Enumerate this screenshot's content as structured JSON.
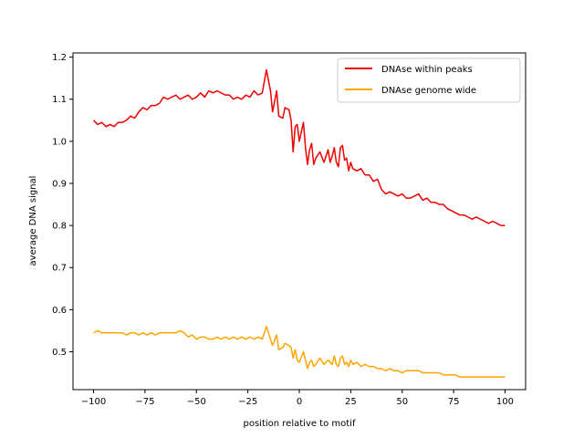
{
  "chart_data": {
    "type": "line",
    "title": "",
    "xlabel": "position relative to motif",
    "ylabel": "average DNA signal",
    "xlim": [
      -110,
      110
    ],
    "ylim": [
      0.41,
      1.21
    ],
    "xticks": [
      -100,
      -75,
      -50,
      -25,
      0,
      25,
      50,
      75,
      100
    ],
    "xtick_labels": [
      "−100",
      "−75",
      "−50",
      "−25",
      "0",
      "25",
      "50",
      "75",
      "100"
    ],
    "yticks": [
      0.5,
      0.6,
      0.7,
      0.8,
      0.9,
      1.0,
      1.1,
      1.2
    ],
    "ytick_labels": [
      "0.5",
      "0.6",
      "0.7",
      "0.8",
      "0.9",
      "1.0",
      "1.1",
      "1.2"
    ],
    "grid": false,
    "legend_position": "top-right",
    "series": [
      {
        "name": "DNAse within peaks",
        "color": "#ee0000",
        "points": [
          [
            -100,
            1.05
          ],
          [
            -98,
            1.04
          ],
          [
            -96,
            1.045
          ],
          [
            -94,
            1.035
          ],
          [
            -92,
            1.04
          ],
          [
            -90,
            1.035
          ],
          [
            -88,
            1.045
          ],
          [
            -86,
            1.045
          ],
          [
            -84,
            1.05
          ],
          [
            -82,
            1.06
          ],
          [
            -80,
            1.055
          ],
          [
            -78,
            1.07
          ],
          [
            -76,
            1.08
          ],
          [
            -74,
            1.075
          ],
          [
            -72,
            1.085
          ],
          [
            -70,
            1.085
          ],
          [
            -68,
            1.09
          ],
          [
            -66,
            1.105
          ],
          [
            -64,
            1.1
          ],
          [
            -62,
            1.105
          ],
          [
            -60,
            1.11
          ],
          [
            -58,
            1.1
          ],
          [
            -56,
            1.105
          ],
          [
            -54,
            1.11
          ],
          [
            -52,
            1.1
          ],
          [
            -50,
            1.105
          ],
          [
            -48,
            1.115
          ],
          [
            -46,
            1.105
          ],
          [
            -44,
            1.12
          ],
          [
            -42,
            1.115
          ],
          [
            -40,
            1.12
          ],
          [
            -38,
            1.115
          ],
          [
            -36,
            1.11
          ],
          [
            -34,
            1.11
          ],
          [
            -32,
            1.1
          ],
          [
            -30,
            1.105
          ],
          [
            -28,
            1.1
          ],
          [
            -26,
            1.11
          ],
          [
            -24,
            1.105
          ],
          [
            -22,
            1.12
          ],
          [
            -20,
            1.11
          ],
          [
            -18,
            1.115
          ],
          [
            -16,
            1.17
          ],
          [
            -14,
            1.12
          ],
          [
            -13,
            1.07
          ],
          [
            -11,
            1.12
          ],
          [
            -10,
            1.06
          ],
          [
            -8,
            1.055
          ],
          [
            -7,
            1.08
          ],
          [
            -5,
            1.075
          ],
          [
            -4,
            1.05
          ],
          [
            -3,
            0.975
          ],
          [
            -2,
            1.035
          ],
          [
            -1,
            1.04
          ],
          [
            0,
            1.0
          ],
          [
            2,
            1.045
          ],
          [
            3,
            0.985
          ],
          [
            4,
            0.945
          ],
          [
            5,
            0.98
          ],
          [
            6,
            0.995
          ],
          [
            7,
            0.945
          ],
          [
            8,
            0.96
          ],
          [
            10,
            0.975
          ],
          [
            12,
            0.95
          ],
          [
            14,
            0.98
          ],
          [
            15,
            0.95
          ],
          [
            16,
            0.965
          ],
          [
            17,
            0.985
          ],
          [
            18,
            0.95
          ],
          [
            19,
            0.94
          ],
          [
            20,
            0.985
          ],
          [
            21,
            0.99
          ],
          [
            22,
            0.955
          ],
          [
            23,
            0.96
          ],
          [
            24,
            0.93
          ],
          [
            25,
            0.95
          ],
          [
            26,
            0.935
          ],
          [
            28,
            0.93
          ],
          [
            30,
            0.935
          ],
          [
            32,
            0.92
          ],
          [
            34,
            0.92
          ],
          [
            36,
            0.905
          ],
          [
            38,
            0.91
          ],
          [
            40,
            0.885
          ],
          [
            42,
            0.875
          ],
          [
            44,
            0.88
          ],
          [
            46,
            0.875
          ],
          [
            48,
            0.87
          ],
          [
            50,
            0.875
          ],
          [
            52,
            0.865
          ],
          [
            54,
            0.865
          ],
          [
            56,
            0.87
          ],
          [
            58,
            0.875
          ],
          [
            60,
            0.86
          ],
          [
            62,
            0.865
          ],
          [
            64,
            0.855
          ],
          [
            66,
            0.855
          ],
          [
            68,
            0.85
          ],
          [
            70,
            0.85
          ],
          [
            72,
            0.84
          ],
          [
            74,
            0.835
          ],
          [
            76,
            0.83
          ],
          [
            78,
            0.825
          ],
          [
            80,
            0.825
          ],
          [
            82,
            0.82
          ],
          [
            84,
            0.815
          ],
          [
            86,
            0.82
          ],
          [
            88,
            0.815
          ],
          [
            90,
            0.81
          ],
          [
            92,
            0.805
          ],
          [
            94,
            0.81
          ],
          [
            96,
            0.805
          ],
          [
            98,
            0.8
          ],
          [
            100,
            0.8
          ]
        ]
      },
      {
        "name": "DNAse genome wide",
        "color": "#ffa500",
        "points": [
          [
            -100,
            0.545
          ],
          [
            -98,
            0.55
          ],
          [
            -96,
            0.545
          ],
          [
            -94,
            0.545
          ],
          [
            -92,
            0.545
          ],
          [
            -90,
            0.545
          ],
          [
            -88,
            0.545
          ],
          [
            -86,
            0.545
          ],
          [
            -84,
            0.54
          ],
          [
            -82,
            0.545
          ],
          [
            -80,
            0.545
          ],
          [
            -78,
            0.54
          ],
          [
            -76,
            0.545
          ],
          [
            -74,
            0.54
          ],
          [
            -72,
            0.545
          ],
          [
            -70,
            0.54
          ],
          [
            -68,
            0.545
          ],
          [
            -66,
            0.545
          ],
          [
            -64,
            0.545
          ],
          [
            -62,
            0.545
          ],
          [
            -60,
            0.545
          ],
          [
            -58,
            0.55
          ],
          [
            -56,
            0.545
          ],
          [
            -54,
            0.535
          ],
          [
            -52,
            0.54
          ],
          [
            -50,
            0.53
          ],
          [
            -48,
            0.535
          ],
          [
            -46,
            0.535
          ],
          [
            -44,
            0.53
          ],
          [
            -42,
            0.53
          ],
          [
            -40,
            0.535
          ],
          [
            -38,
            0.53
          ],
          [
            -36,
            0.535
          ],
          [
            -34,
            0.53
          ],
          [
            -32,
            0.535
          ],
          [
            -30,
            0.53
          ],
          [
            -28,
            0.535
          ],
          [
            -26,
            0.53
          ],
          [
            -24,
            0.535
          ],
          [
            -22,
            0.53
          ],
          [
            -20,
            0.535
          ],
          [
            -18,
            0.53
          ],
          [
            -16,
            0.56
          ],
          [
            -14,
            0.53
          ],
          [
            -13,
            0.515
          ],
          [
            -11,
            0.54
          ],
          [
            -10,
            0.505
          ],
          [
            -8,
            0.51
          ],
          [
            -7,
            0.52
          ],
          [
            -5,
            0.515
          ],
          [
            -4,
            0.51
          ],
          [
            -3,
            0.485
          ],
          [
            -2,
            0.505
          ],
          [
            -1,
            0.48
          ],
          [
            0,
            0.475
          ],
          [
            2,
            0.5
          ],
          [
            3,
            0.48
          ],
          [
            4,
            0.46
          ],
          [
            5,
            0.475
          ],
          [
            6,
            0.48
          ],
          [
            7,
            0.465
          ],
          [
            8,
            0.47
          ],
          [
            10,
            0.485
          ],
          [
            12,
            0.47
          ],
          [
            14,
            0.48
          ],
          [
            15,
            0.475
          ],
          [
            16,
            0.47
          ],
          [
            17,
            0.49
          ],
          [
            18,
            0.47
          ],
          [
            19,
            0.465
          ],
          [
            20,
            0.485
          ],
          [
            21,
            0.49
          ],
          [
            22,
            0.47
          ],
          [
            23,
            0.475
          ],
          [
            24,
            0.465
          ],
          [
            25,
            0.48
          ],
          [
            26,
            0.47
          ],
          [
            28,
            0.475
          ],
          [
            30,
            0.465
          ],
          [
            32,
            0.47
          ],
          [
            34,
            0.465
          ],
          [
            36,
            0.465
          ],
          [
            38,
            0.46
          ],
          [
            40,
            0.46
          ],
          [
            42,
            0.455
          ],
          [
            44,
            0.46
          ],
          [
            46,
            0.455
          ],
          [
            48,
            0.455
          ],
          [
            50,
            0.45
          ],
          [
            52,
            0.455
          ],
          [
            54,
            0.455
          ],
          [
            56,
            0.455
          ],
          [
            58,
            0.455
          ],
          [
            60,
            0.45
          ],
          [
            62,
            0.45
          ],
          [
            64,
            0.45
          ],
          [
            66,
            0.45
          ],
          [
            68,
            0.45
          ],
          [
            70,
            0.445
          ],
          [
            72,
            0.445
          ],
          [
            74,
            0.445
          ],
          [
            76,
            0.445
          ],
          [
            78,
            0.44
          ],
          [
            80,
            0.44
          ],
          [
            82,
            0.44
          ],
          [
            84,
            0.44
          ],
          [
            86,
            0.44
          ],
          [
            88,
            0.44
          ],
          [
            90,
            0.44
          ],
          [
            92,
            0.44
          ],
          [
            94,
            0.44
          ],
          [
            96,
            0.44
          ],
          [
            98,
            0.44
          ],
          [
            100,
            0.44
          ]
        ]
      }
    ]
  }
}
